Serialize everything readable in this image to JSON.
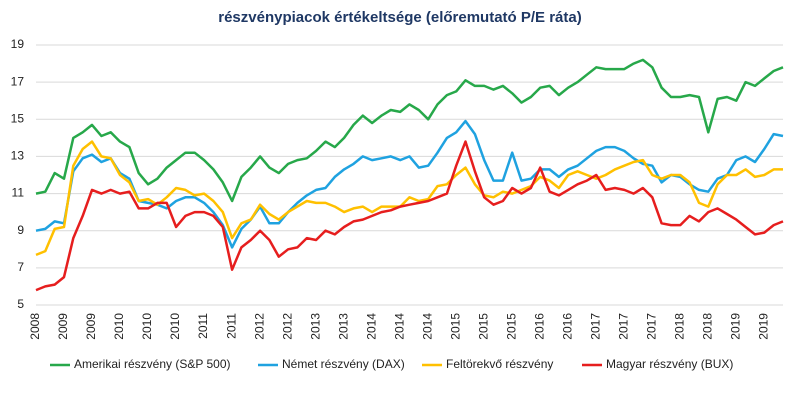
{
  "chart_data": {
    "type": "line",
    "title": "részvénypiacok értékeltsége (előremutató P/E ráta)",
    "categories": [
      "2008",
      null,
      null,
      "2009",
      null,
      null,
      "2009",
      null,
      null,
      "2010",
      null,
      null,
      "2010",
      null,
      null,
      "2010",
      null,
      null,
      "2011",
      null,
      null,
      "2011",
      null,
      null,
      "2012",
      null,
      null,
      "2012",
      null,
      null,
      "2013",
      null,
      null,
      "2013",
      null,
      null,
      "2014",
      null,
      null,
      "2014",
      null,
      null,
      "2014",
      null,
      null,
      "2015",
      null,
      null,
      "2015",
      null,
      null,
      "2015",
      null,
      null,
      "2016",
      null,
      null,
      "2016",
      null,
      null,
      "2017",
      null,
      null,
      "2017",
      null,
      null,
      "2017",
      null,
      null,
      "2018",
      null,
      null,
      "2018",
      null,
      null,
      "2019",
      null,
      null,
      "2019",
      null,
      null
    ],
    "ylim": [
      5,
      19
    ],
    "yticks": [
      5,
      7,
      9,
      11,
      13,
      15,
      17,
      19
    ],
    "grid": true,
    "series": [
      {
        "name": "Amerikai részvény (S&P 500)",
        "color": "#27a84a",
        "values": [
          11.0,
          11.1,
          12.1,
          11.8,
          14.0,
          14.3,
          14.7,
          14.1,
          14.3,
          13.8,
          13.5,
          12.1,
          11.5,
          11.8,
          12.4,
          12.8,
          13.2,
          13.2,
          12.8,
          12.3,
          11.6,
          10.6,
          11.9,
          12.4,
          13.0,
          12.4,
          12.1,
          12.6,
          12.8,
          12.9,
          13.3,
          13.8,
          13.5,
          14.0,
          14.7,
          15.2,
          14.8,
          15.2,
          15.5,
          15.4,
          15.8,
          15.5,
          15.0,
          15.8,
          16.3,
          16.5,
          17.1,
          16.8,
          16.8,
          16.6,
          16.8,
          16.4,
          15.9,
          16.2,
          16.7,
          16.8,
          16.3,
          16.7,
          17.0,
          17.4,
          17.8,
          17.7,
          17.7,
          17.7,
          18.0,
          18.2,
          17.8,
          16.7,
          16.2,
          16.2,
          16.3,
          16.2,
          14.3,
          16.1,
          16.2,
          16.0,
          17.0,
          16.8,
          17.2,
          17.6,
          17.8
        ]
      },
      {
        "name": "Német részvény (DAX)",
        "color": "#1fa2e0",
        "values": [
          9.0,
          9.1,
          9.5,
          9.4,
          12.2,
          12.9,
          13.1,
          12.7,
          12.9,
          12.1,
          11.8,
          10.6,
          10.5,
          10.4,
          10.2,
          10.6,
          10.8,
          10.8,
          10.5,
          10.0,
          9.3,
          8.1,
          9.1,
          9.6,
          10.3,
          9.4,
          9.4,
          10.0,
          10.5,
          10.9,
          11.2,
          11.3,
          11.9,
          12.3,
          12.6,
          13.0,
          12.8,
          12.9,
          13.0,
          12.8,
          13.0,
          12.4,
          12.5,
          13.2,
          14.0,
          14.3,
          14.9,
          14.2,
          12.8,
          11.7,
          11.7,
          13.2,
          11.7,
          11.8,
          12.3,
          12.3,
          11.9,
          12.3,
          12.5,
          12.9,
          13.3,
          13.5,
          13.5,
          13.3,
          12.9,
          12.6,
          12.5,
          11.6,
          12.0,
          11.9,
          11.5,
          11.2,
          11.1,
          11.8,
          12.0,
          12.8,
          13.0,
          12.7,
          13.4,
          14.2,
          14.1
        ]
      },
      {
        "name": "Feltörekvő részvény",
        "color": "#ffc000",
        "values": [
          7.7,
          7.9,
          9.1,
          9.2,
          12.5,
          13.4,
          13.8,
          13.0,
          12.9,
          12.0,
          11.6,
          10.6,
          10.7,
          10.4,
          10.8,
          11.3,
          11.2,
          10.9,
          11.0,
          10.6,
          10.0,
          8.6,
          9.4,
          9.6,
          10.4,
          9.9,
          9.6,
          10.0,
          10.3,
          10.6,
          10.5,
          10.5,
          10.3,
          10.0,
          10.2,
          10.3,
          10.0,
          10.3,
          10.3,
          10.3,
          10.8,
          10.6,
          10.7,
          11.4,
          11.5,
          12.0,
          12.4,
          11.5,
          10.9,
          10.8,
          11.1,
          11.0,
          11.2,
          11.4,
          11.9,
          11.7,
          11.3,
          12.0,
          12.2,
          12.0,
          11.8,
          12.0,
          12.3,
          12.5,
          12.7,
          12.8,
          12.0,
          11.8,
          12.0,
          12.0,
          11.6,
          10.5,
          10.3,
          11.5,
          12.0,
          12.0,
          12.3,
          11.9,
          12.0,
          12.3,
          12.3
        ]
      },
      {
        "name": "Magyar részvény (BUX)",
        "color": "#e61e1e",
        "values": [
          5.8,
          6.0,
          6.1,
          6.5,
          8.6,
          9.8,
          11.2,
          11.0,
          11.2,
          11.0,
          11.1,
          10.2,
          10.2,
          10.5,
          10.5,
          9.2,
          9.8,
          10.0,
          10.0,
          9.8,
          9.2,
          6.9,
          8.1,
          8.5,
          9.0,
          8.5,
          7.6,
          8.0,
          8.1,
          8.6,
          8.5,
          9.0,
          8.8,
          9.2,
          9.5,
          9.6,
          9.8,
          10.0,
          10.1,
          10.3,
          10.4,
          10.5,
          10.6,
          10.8,
          11.0,
          12.5,
          13.8,
          12.2,
          10.8,
          10.4,
          10.6,
          11.3,
          11.0,
          11.3,
          12.4,
          11.1,
          10.9,
          11.2,
          11.5,
          11.7,
          12.0,
          11.2,
          11.3,
          11.2,
          11.0,
          11.3,
          10.8,
          9.4,
          9.3,
          9.3,
          9.8,
          9.5,
          10.0,
          10.2,
          9.9,
          9.6,
          9.2,
          8.8,
          8.9,
          9.3,
          9.5
        ]
      }
    ]
  }
}
